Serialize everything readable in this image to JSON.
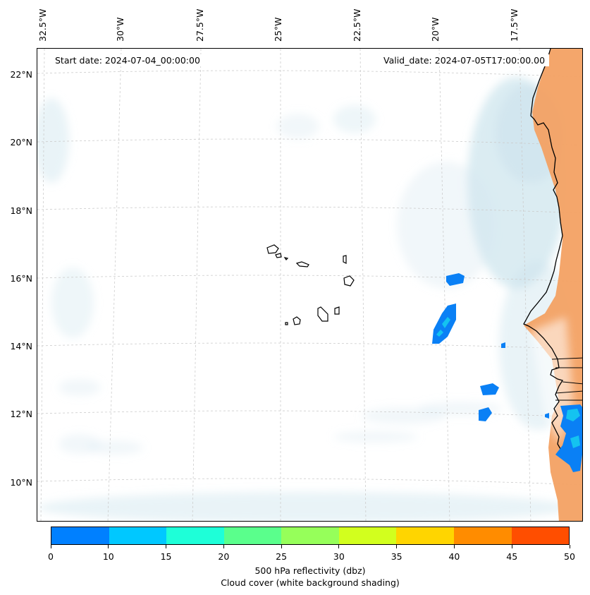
{
  "map": {
    "lon_labels": [
      "32.5°W",
      "30°W",
      "27.5°W",
      "25°W",
      "22.5°W",
      "20°W",
      "17.5°W"
    ],
    "lat_labels": [
      "22°N",
      "20°N",
      "18°N",
      "16°N",
      "14°N",
      "12°N",
      "10°N"
    ],
    "start_date": "Start date: 2024-07-04_00:00:00",
    "valid_date": "Valid_date: 2024-07-05T17:00:00.00"
  },
  "colorbar": {
    "colors": [
      "#0080ff",
      "#00c8ff",
      "#1effd8",
      "#5aff8c",
      "#96ff5a",
      "#d2ff1e",
      "#ffd500",
      "#ff8c00",
      "#ff4e00"
    ],
    "ticks": [
      "0",
      "10",
      "15",
      "20",
      "25",
      "30",
      "35",
      "40",
      "45",
      "50"
    ],
    "label_line1": "500 hPa reflectivity (dbz)",
    "label_line2": "Cloud cover (white background shading)"
  },
  "colors": {
    "land_sahara": "#f3a163",
    "cloud_shade": "#cfe5ee",
    "reflectivity_low": "#0a80f5",
    "reflectivity_mid": "#14c3f0",
    "coastline": "#000000",
    "gridline": "#cccccc"
  }
}
